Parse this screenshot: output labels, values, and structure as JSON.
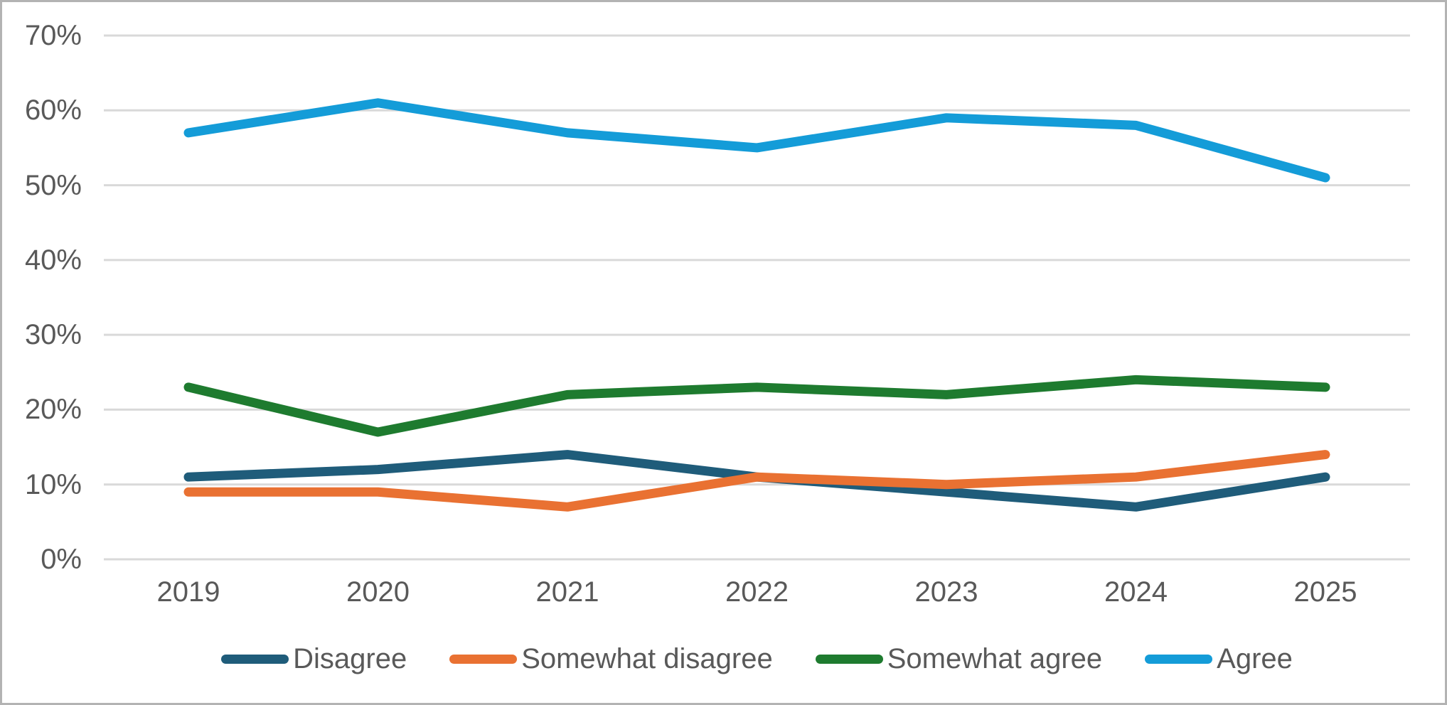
{
  "chart_data": {
    "type": "line",
    "title": "",
    "categories": [
      "2019",
      "2020",
      "2021",
      "2022",
      "2023",
      "2024",
      "2025"
    ],
    "series": [
      {
        "name": "Disagree",
        "color": "#1F5C7A",
        "values": [
          11,
          12,
          14,
          11,
          9,
          7,
          11
        ]
      },
      {
        "name": "Somewhat disagree",
        "color": "#E97132",
        "values": [
          9,
          9,
          7,
          11,
          10,
          11,
          14
        ]
      },
      {
        "name": "Somewhat agree",
        "color": "#1E7B2F",
        "values": [
          23,
          17,
          22,
          23,
          22,
          24,
          23
        ]
      },
      {
        "name": "Agree",
        "color": "#149CD8",
        "values": [
          57,
          61,
          57,
          55,
          59,
          58,
          51
        ]
      }
    ],
    "ylim": [
      0,
      70
    ],
    "ytick_values": [
      0,
      10,
      20,
      30,
      40,
      50,
      60,
      70
    ],
    "ytick_labels": [
      "0%",
      "10%",
      "20%",
      "30%",
      "40%",
      "50%",
      "60%",
      "70%"
    ],
    "grid": true,
    "legend_position": "bottom",
    "colors": {
      "grid_line": "#D9D9D9",
      "axis_text": "#595959",
      "frame_border": "#B3B3B3",
      "background": "#FFFFFF"
    }
  }
}
